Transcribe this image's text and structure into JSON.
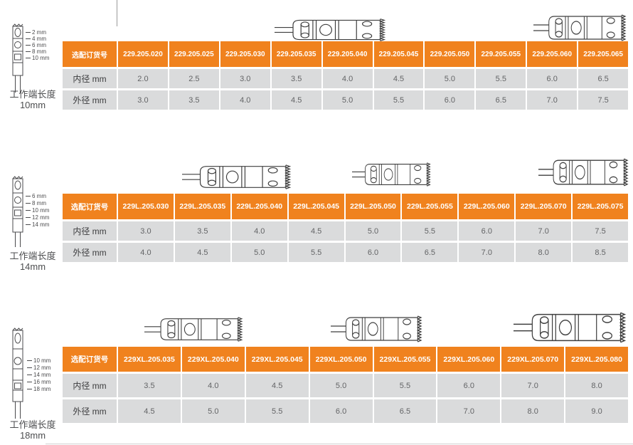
{
  "colors": {
    "accent_orange": "#F0821E",
    "cell_gray": "#DADBDC"
  },
  "sections": [
    {
      "caption_line1": "工作端长度",
      "caption_line2": "10mm",
      "ticks": [
        "2 mm",
        "4 mm",
        "6 mm",
        "8 mm",
        "10 mm"
      ],
      "table": {
        "header_label": "选配订货号",
        "codes": [
          "229.205.020",
          "229.205.025",
          "229.205.030",
          "229.205.035",
          "229.205.040",
          "229.205.045",
          "229.205.050",
          "229.205.055",
          "229.205.060",
          "229.205.065"
        ],
        "rows": [
          {
            "label": "内径 mm",
            "values": [
              "2.0",
              "2.5",
              "3.0",
              "3.5",
              "4.0",
              "4.5",
              "5.0",
              "5.5",
              "6.0",
              "6.5"
            ]
          },
          {
            "label": "外径 mm",
            "values": [
              "3.0",
              "3.5",
              "4.0",
              "4.5",
              "5.0",
              "5.5",
              "6.0",
              "6.5",
              "7.0",
              "7.5"
            ]
          }
        ]
      }
    },
    {
      "caption_line1": "工作端长度",
      "caption_line2": "14mm",
      "ticks": [
        "6 mm",
        "8 mm",
        "10 mm",
        "12 mm",
        "14 mm"
      ],
      "table": {
        "header_label": "选配订货号",
        "codes": [
          "229L.205.030",
          "229L.205.035",
          "229L.205.040",
          "229L.205.045",
          "229L.205.050",
          "229L.205.055",
          "229L.205.060",
          "229L.205.070",
          "229L.205.075"
        ],
        "rows": [
          {
            "label": "内径 mm",
            "values": [
              "3.0",
              "3.5",
              "4.0",
              "4.5",
              "5.0",
              "5.5",
              "6.0",
              "7.0",
              "7.5"
            ]
          },
          {
            "label": "外径 mm",
            "values": [
              "4.0",
              "4.5",
              "5.0",
              "5.5",
              "6.0",
              "6.5",
              "7.0",
              "8.0",
              "8.5"
            ]
          }
        ]
      }
    },
    {
      "caption_line1": "工作端长度",
      "caption_line2": "18mm",
      "ticks": [
        "10 mm",
        "12 mm",
        "14 mm",
        "16 mm",
        "18 mm"
      ],
      "table": {
        "header_label": "选配订货号",
        "codes": [
          "229XL.205.035",
          "229XL.205.040",
          "229XL.205.045",
          "229XL.205.050",
          "229XL.205.055",
          "229XL.205.060",
          "229XL.205.070",
          "229XL.205.080"
        ],
        "rows": [
          {
            "label": "内径 mm",
            "values": [
              "3.5",
              "4.0",
              "4.5",
              "5.0",
              "5.5",
              "6.0",
              "7.0",
              "8.0"
            ]
          },
          {
            "label": "外径 mm",
            "values": [
              "4.5",
              "5.0",
              "5.5",
              "6.0",
              "6.5",
              "7.0",
              "8.0",
              "9.0"
            ]
          }
        ]
      }
    }
  ]
}
